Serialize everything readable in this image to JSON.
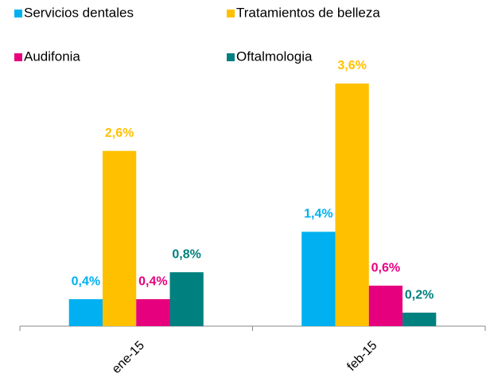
{
  "chart_data": {
    "type": "bar",
    "categories": [
      "ene-15",
      "feb-15"
    ],
    "series": [
      {
        "name": "Servicios dentales",
        "color": "#00b0f0",
        "values": [
          0.4,
          1.4
        ],
        "value_labels": [
          "0,4%",
          "1,4%"
        ]
      },
      {
        "name": "Tratamientos de belleza",
        "color": "#ffc000",
        "values": [
          2.6,
          3.6
        ],
        "value_labels": [
          "2,6%",
          "3,6%"
        ]
      },
      {
        "name": "Audifonia",
        "color": "#e6007e",
        "values": [
          0.4,
          0.6
        ],
        "value_labels": [
          "0,4%",
          "0,6%"
        ]
      },
      {
        "name": "Oftalmologia",
        "color": "#00807f",
        "values": [
          0.8,
          0.2
        ],
        "value_labels": [
          "0,8%",
          "0,2%"
        ]
      }
    ],
    "legend": "top"
  }
}
